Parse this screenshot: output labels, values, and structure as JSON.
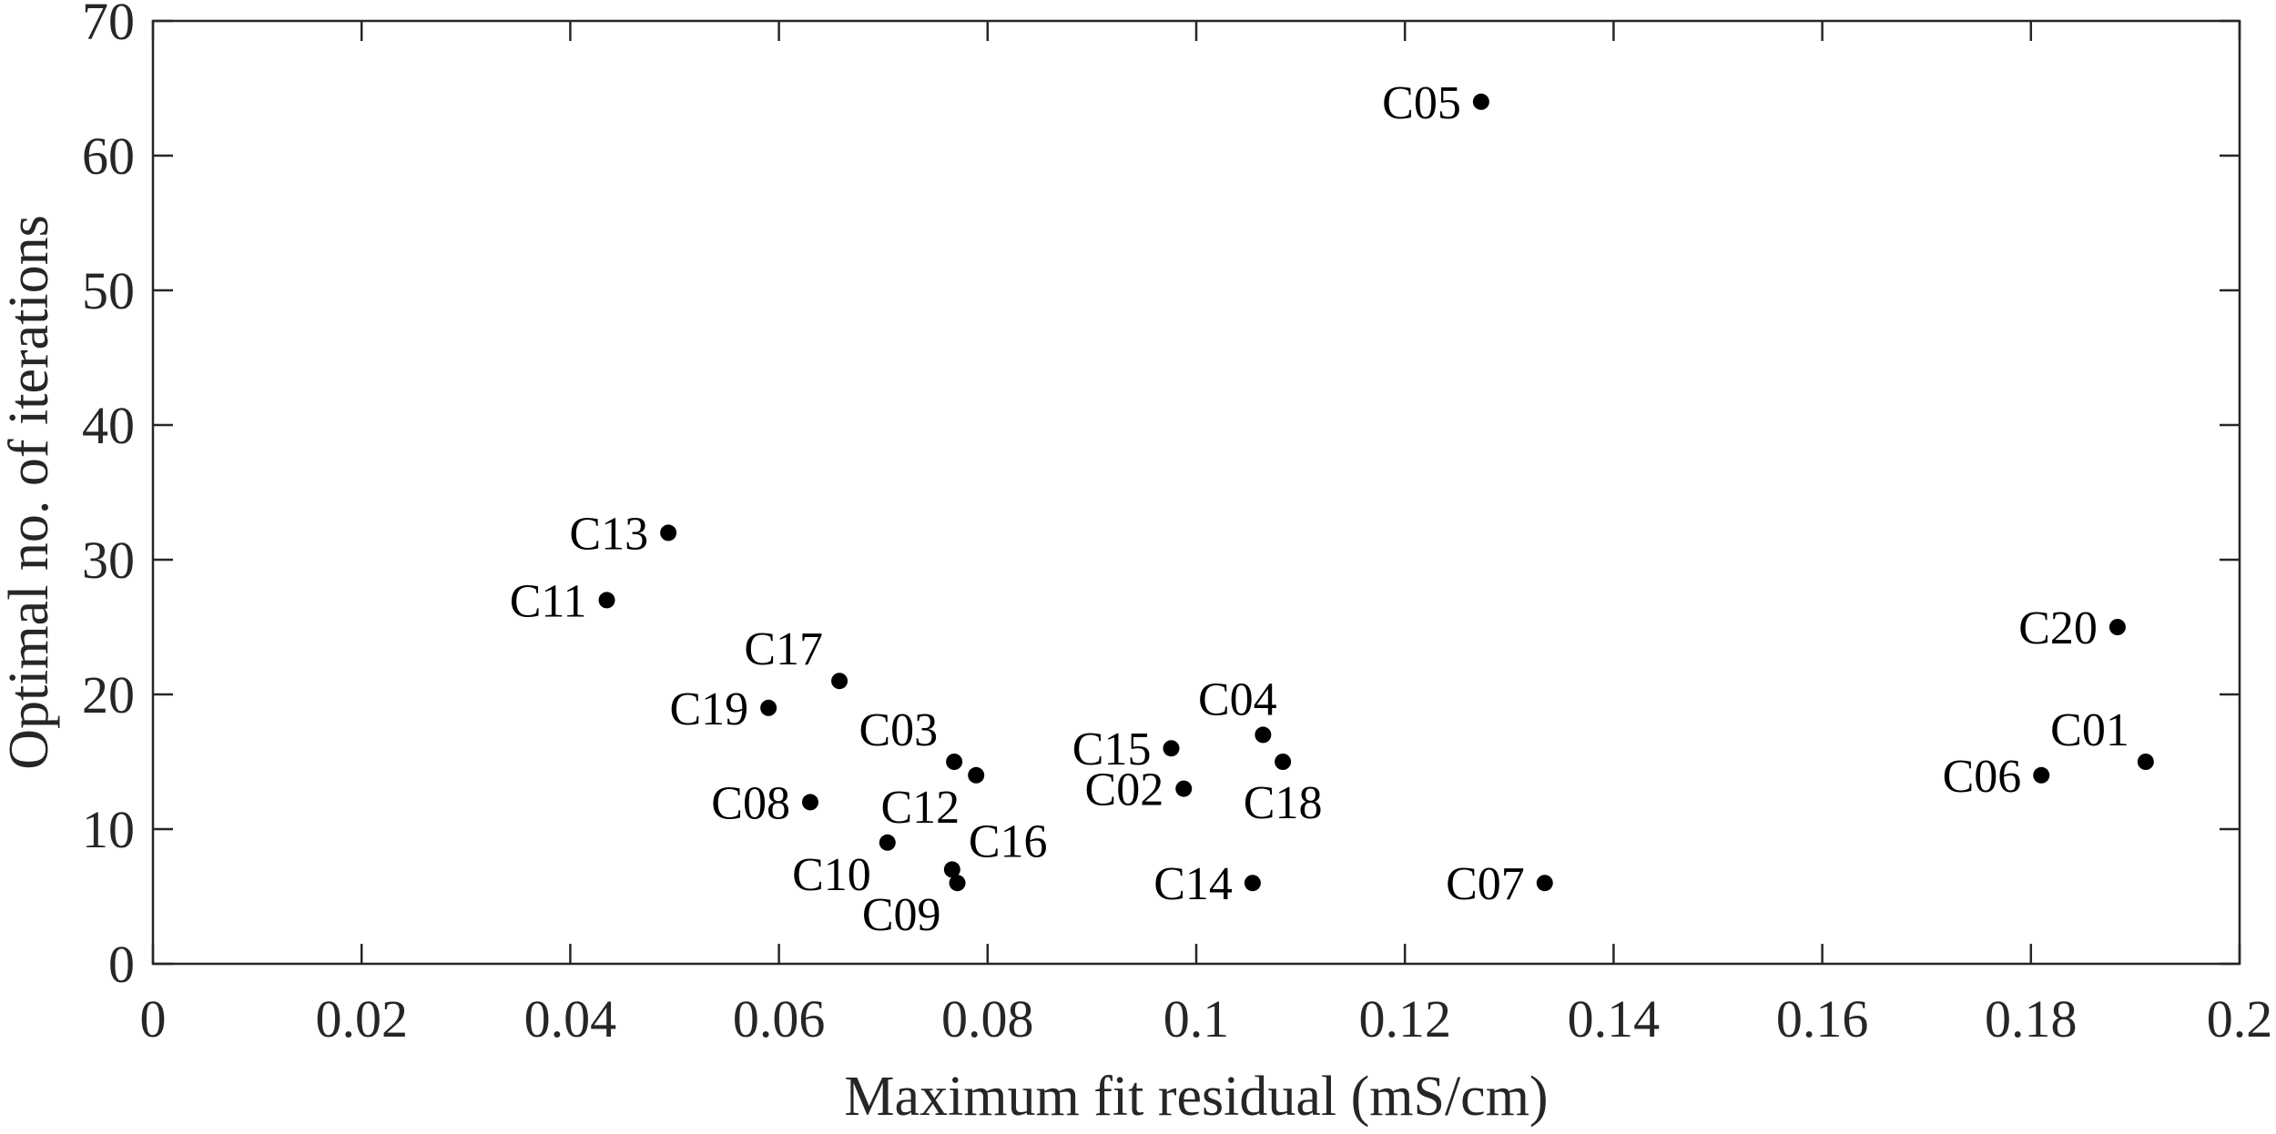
{
  "chart_data": {
    "type": "scatter",
    "title": "",
    "xlabel": "Maximum fit residual (mS/cm)",
    "ylabel": "Optimal no. of iterations",
    "xlim": [
      0,
      0.2
    ],
    "ylim": [
      0,
      70
    ],
    "xticks": [
      0,
      0.02,
      0.04,
      0.06,
      0.08,
      0.1,
      0.12,
      0.14,
      0.16,
      0.18,
      0.2
    ],
    "xtick_labels": [
      "0",
      "0.02",
      "0.04",
      "0.06",
      "0.08",
      "0.1",
      "0.12",
      "0.14",
      "0.16",
      "0.18",
      "0.2"
    ],
    "yticks": [
      0,
      10,
      20,
      30,
      40,
      50,
      60,
      70
    ],
    "ytick_labels": [
      "0",
      "10",
      "20",
      "30",
      "40",
      "50",
      "60",
      "70"
    ],
    "grid": false,
    "legend": null,
    "marker_color": "#000000",
    "points": [
      {
        "label": "C01",
        "x": 0.191,
        "y": 15,
        "label_pos": "above-left"
      },
      {
        "label": "C02",
        "x": 0.0988,
        "y": 13,
        "label_pos": "left"
      },
      {
        "label": "C03",
        "x": 0.0768,
        "y": 15,
        "label_pos": "above-left"
      },
      {
        "label": "C04",
        "x": 0.1064,
        "y": 17,
        "label_pos": "above"
      },
      {
        "label": "C05",
        "x": 0.1273,
        "y": 64,
        "label_pos": "left"
      },
      {
        "label": "C06",
        "x": 0.181,
        "y": 14,
        "label_pos": "left"
      },
      {
        "label": "C07",
        "x": 0.1334,
        "y": 6,
        "label_pos": "left"
      },
      {
        "label": "C08",
        "x": 0.063,
        "y": 12,
        "label_pos": "left"
      },
      {
        "label": "C09",
        "x": 0.0771,
        "y": 6,
        "label_pos": "below-left"
      },
      {
        "label": "C10",
        "x": 0.0704,
        "y": 9,
        "label_pos": "below-left"
      },
      {
        "label": "C11",
        "x": 0.0435,
        "y": 27,
        "label_pos": "left"
      },
      {
        "label": "C12",
        "x": 0.0789,
        "y": 14,
        "label_pos": "below-left"
      },
      {
        "label": "C13",
        "x": 0.0494,
        "y": 32,
        "label_pos": "left"
      },
      {
        "label": "C14",
        "x": 0.1054,
        "y": 6,
        "label_pos": "left"
      },
      {
        "label": "C15",
        "x": 0.0976,
        "y": 16,
        "label_pos": "left"
      },
      {
        "label": "C16",
        "x": 0.0766,
        "y": 7,
        "label_pos": "above-right"
      },
      {
        "label": "C17",
        "x": 0.0658,
        "y": 21,
        "label_pos": "above-left"
      },
      {
        "label": "C18",
        "x": 0.1083,
        "y": 15,
        "label_pos": "below"
      },
      {
        "label": "C19",
        "x": 0.059,
        "y": 19,
        "label_pos": "left"
      },
      {
        "label": "C20",
        "x": 0.1883,
        "y": 25,
        "label_pos": "left"
      }
    ]
  }
}
